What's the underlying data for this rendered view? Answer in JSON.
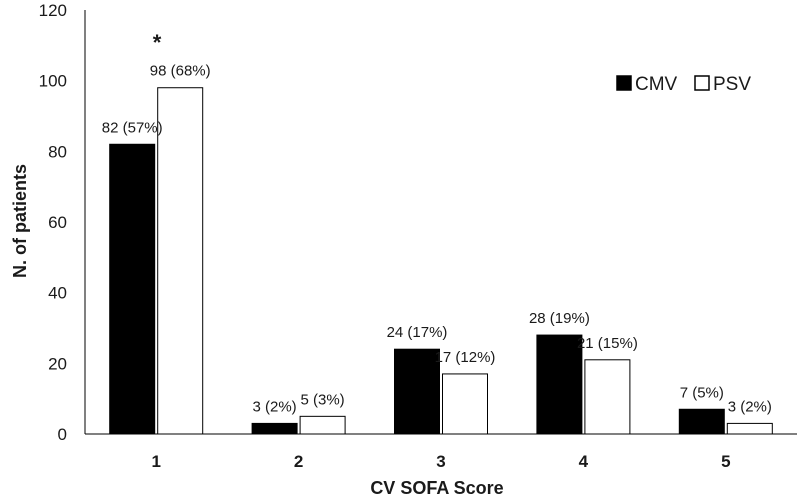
{
  "chart_data": {
    "type": "bar",
    "title": "",
    "xlabel": "CV SOFA Score",
    "ylabel": "N. of patients",
    "categories": [
      "1",
      "2",
      "3",
      "4",
      "5"
    ],
    "ylim": [
      0,
      120
    ],
    "yticks": [
      0,
      20,
      40,
      60,
      80,
      100,
      120
    ],
    "series": [
      {
        "name": "CMV",
        "color": "#000000",
        "values": [
          82,
          3,
          24,
          28,
          7
        ],
        "labels": [
          "82 (57%)",
          "3 (2%)",
          "24 (17%)",
          "28 (19%)",
          "7 (5%)"
        ]
      },
      {
        "name": "PSV",
        "color": "#ffffff",
        "values": [
          98,
          5,
          17,
          21,
          3
        ],
        "labels": [
          "98 (68%)",
          "5 (3%)",
          "17 (12%)",
          "21 (15%)",
          "3 (2%)"
        ]
      }
    ],
    "legend": {
      "position": "top-right",
      "items": [
        "CMV",
        "PSV"
      ]
    },
    "annotations": [
      {
        "text": "*",
        "category": "1",
        "series": "PSV"
      }
    ],
    "grid": false
  }
}
